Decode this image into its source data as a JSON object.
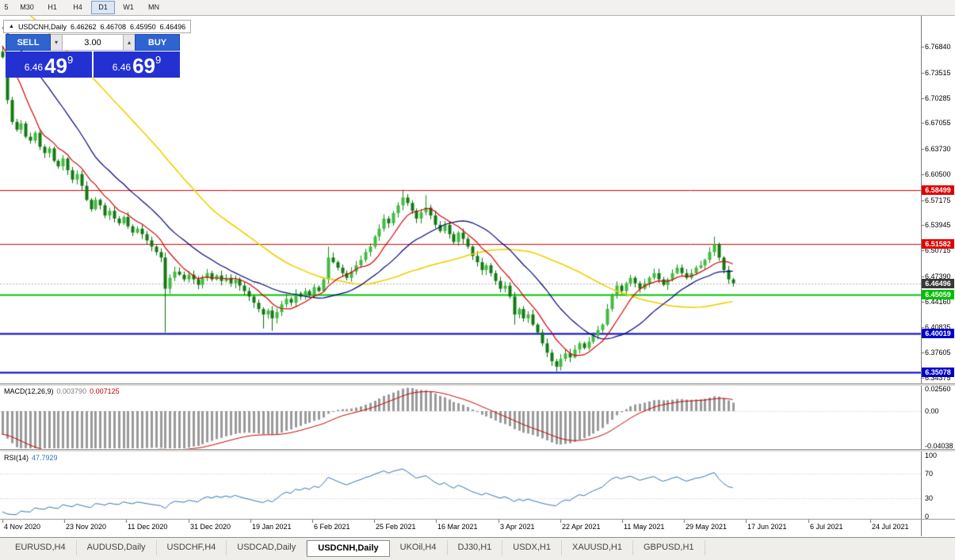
{
  "toolbar": {
    "buttons": [
      "5",
      "M30",
      "H1",
      "H4",
      "D1",
      "W1",
      "MN"
    ],
    "active": "D1"
  },
  "window_title": {
    "symbol": "USDCNH,Daily",
    "o": "6.46262",
    "h": "6.46708",
    "l": "6.45950",
    "c": "6.46496"
  },
  "one_click": {
    "sell_label": "SELL",
    "buy_label": "BUY",
    "volume": "3.00",
    "sell_price_prefix": "6.46",
    "sell_price_big": "49",
    "sell_price_sup": "9",
    "buy_price_prefix": "6.46",
    "buy_price_big": "69",
    "buy_price_sup": "9"
  },
  "icons": {
    "volume_down": "▾",
    "volume_up": "▴",
    "chart_icon": "▲"
  },
  "price_axis": {
    "labels": [
      "6.76840",
      "6.73515",
      "6.70285",
      "6.67055",
      "6.63730",
      "6.60500",
      "6.57175",
      "6.53945",
      "6.50715",
      "6.47390",
      "6.44160",
      "6.40835",
      "6.37605",
      "6.34375"
    ]
  },
  "levels": [
    {
      "price": 6.58499,
      "label": "6.58499",
      "color": "#e00000",
      "width": 1
    },
    {
      "price": 6.51582,
      "label": "6.51582",
      "color": "#e00000",
      "width": 1
    },
    {
      "price": 6.45059,
      "label": "6.45059",
      "color": "#00c000",
      "width": 2
    },
    {
      "price": 6.40019,
      "label": "6.40019",
      "color": "#0000c8",
      "width": 2
    },
    {
      "price": 6.35078,
      "label": "6.35078",
      "color": "#0000c8",
      "width": 2
    }
  ],
  "current_price": {
    "label": "6.46496",
    "price": 6.46496,
    "color": "#383838"
  },
  "macd_panel": {
    "title": "MACD(12,26,9)",
    "value_main": "0.003790",
    "value_signal": "0.007125",
    "scale_labels": [
      "0.02560",
      "0.00",
      "-0.04038"
    ]
  },
  "rsi_panel": {
    "title": "RSI(14)",
    "value": "47.7929",
    "scale_labels": [
      "100",
      "70",
      "30",
      "0"
    ]
  },
  "date_axis": {
    "labels": [
      "4 Nov 2020",
      "23 Nov 2020",
      "11 Dec 2020",
      "31 Dec 2020",
      "19 Jan 2021",
      "6 Feb 2021",
      "25 Feb 2021",
      "16 Mar 2021",
      "3 Apr 2021",
      "22 Apr 2021",
      "11 May 2021",
      "29 May 2021",
      "17 Jun 2021",
      "6 Jul 2021",
      "24 Jul 2021"
    ]
  },
  "bottom_tabs": {
    "items": [
      "EURUSD,H4",
      "AUDUSD,Daily",
      "USDCHF,H4",
      "USDCAD,Daily",
      "USDCNH,Daily",
      "UKOil,H4",
      "DJ30,H1",
      "USDX,H1",
      "XAUUSD,H1",
      "GBPUSD,H1"
    ],
    "active": "USDCNH,Daily"
  },
  "chart_data": {
    "type": "candlestick",
    "symbol": "USDCNH",
    "period": "Daily",
    "first_open": 6.762,
    "closes": [
      6.755,
      6.7,
      6.672,
      6.662,
      6.67,
      6.653,
      6.648,
      6.658,
      6.64,
      6.632,
      6.638,
      6.622,
      6.615,
      6.625,
      6.61,
      6.598,
      6.605,
      6.59,
      6.572,
      6.56,
      6.572,
      6.565,
      6.552,
      6.558,
      6.548,
      6.542,
      6.55,
      6.538,
      6.53,
      6.535,
      6.528,
      6.52,
      6.512,
      6.505,
      6.498,
      6.458,
      6.472,
      6.48,
      6.476,
      6.47,
      6.476,
      6.47,
      6.463,
      6.472,
      6.478,
      6.47,
      6.475,
      6.468,
      6.472,
      6.465,
      6.47,
      6.462,
      6.455,
      6.448,
      6.44,
      6.432,
      6.425,
      6.43,
      6.42,
      6.428,
      6.438,
      6.445,
      6.44,
      6.452,
      6.448,
      6.455,
      6.45,
      6.46,
      6.455,
      6.47,
      6.498,
      6.492,
      6.485,
      6.478,
      6.472,
      6.48,
      6.488,
      6.495,
      6.505,
      6.512,
      6.525,
      6.535,
      6.548,
      6.542,
      6.555,
      6.565,
      6.575,
      6.568,
      6.558,
      6.548,
      6.556,
      6.562,
      6.552,
      6.54,
      6.532,
      6.54,
      6.528,
      6.518,
      6.53,
      6.522,
      6.512,
      6.5,
      6.492,
      6.482,
      6.488,
      6.478,
      6.468,
      6.458,
      6.462,
      6.448,
      6.425,
      6.432,
      6.42,
      6.425,
      6.412,
      6.402,
      6.388,
      6.376,
      6.365,
      6.358,
      6.368,
      6.375,
      6.37,
      6.38,
      6.388,
      6.382,
      6.39,
      6.398,
      6.405,
      6.412,
      6.432,
      6.45,
      6.462,
      6.455,
      6.465,
      6.472,
      6.465,
      6.458,
      6.465,
      6.472,
      6.478,
      6.47,
      6.463,
      6.47,
      6.478,
      6.485,
      6.478,
      6.472,
      6.478,
      6.485,
      6.488,
      6.495,
      6.505,
      6.515,
      6.498,
      6.482,
      6.47,
      6.465
    ],
    "wick_overrides": {
      "0": {
        "high": 6.7684
      },
      "35": {
        "low": 6.402
      },
      "56": {
        "low": 6.407
      },
      "58": {
        "low": 6.404
      },
      "70": {
        "high": 6.512
      },
      "86": {
        "high": 6.5852
      },
      "91": {
        "high": 6.578
      },
      "110": {
        "low": 6.412
      },
      "119": {
        "low": 6.352
      },
      "153": {
        "high": 6.5248
      }
    },
    "moving_averages": [
      {
        "period": 45,
        "color": "#f0cf00",
        "width": 1.6
      },
      {
        "period": 20,
        "color": "#000080",
        "width": 1.2
      },
      {
        "period": 8,
        "color": "#d40000",
        "width": 1.2
      }
    ],
    "candle_colors": {
      "bull_fill": "#3fbc3f",
      "bull_edge": "#1c8a1c",
      "bear_fill": "#117a11",
      "bear_edge": "#0b6a0b"
    },
    "macd": {
      "fast": 12,
      "slow": 26,
      "signal": 9,
      "hist_color": "#9a9a9a",
      "signal_color": "#c40000"
    },
    "rsi": {
      "period": 14,
      "color": "#2e74b5",
      "levels": [
        70,
        30
      ]
    }
  }
}
